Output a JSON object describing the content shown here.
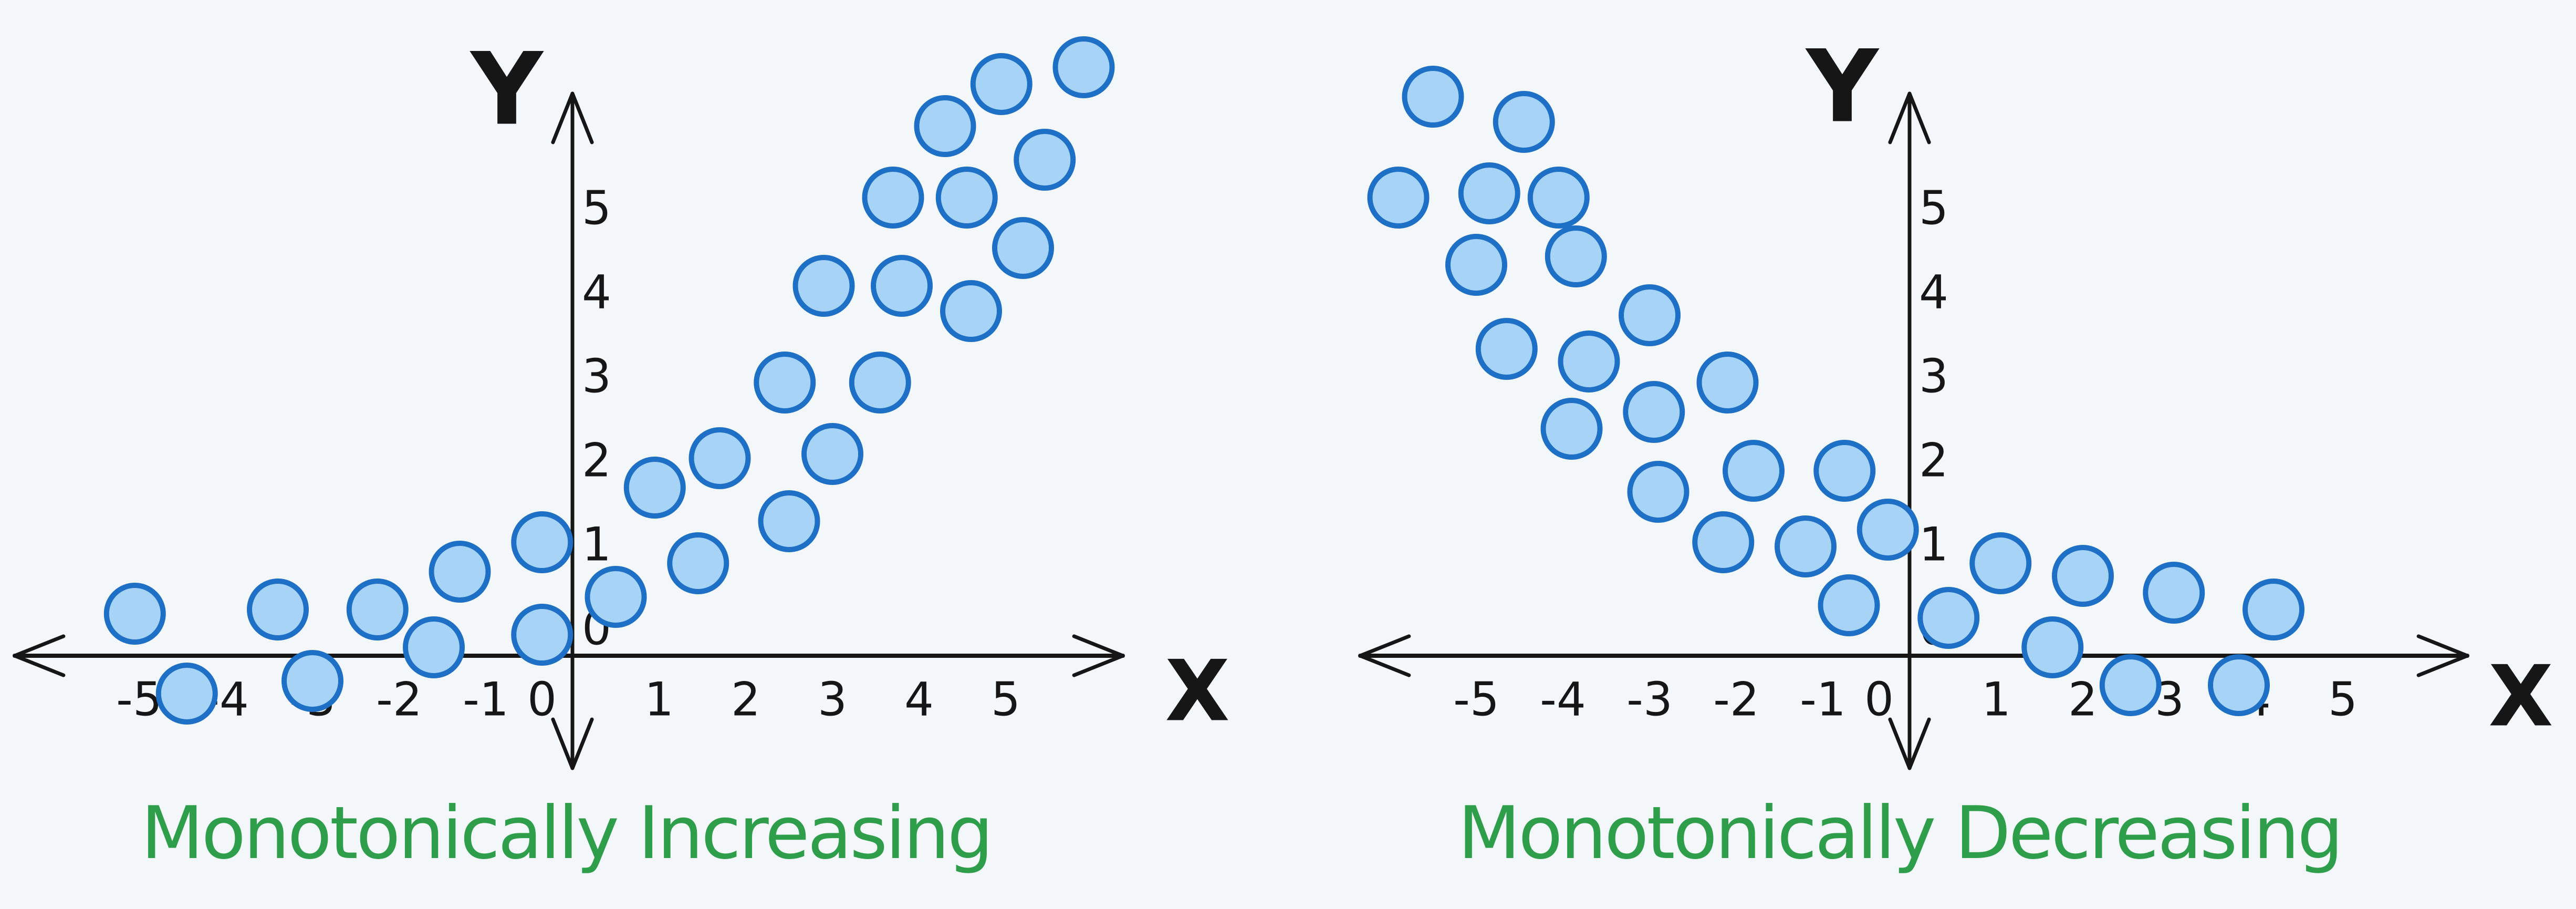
{
  "colors": {
    "background": "#f4f7f9",
    "axis": "#161616",
    "tick_label": "#161616",
    "caption_green": "#2e9e4b",
    "point_fill": "#a7d4f6",
    "point_stroke": "#1d70c5"
  },
  "chart_data": [
    {
      "type": "scatter",
      "title": "Monotonically Increasing",
      "xlabel": "X",
      "ylabel": "Y",
      "x_ticks": [
        -5,
        -4,
        -3,
        -2,
        -1,
        0,
        1,
        2,
        3,
        4,
        5
      ],
      "y_ticks": [
        0,
        1,
        2,
        3,
        4,
        5
      ],
      "xlim": [
        -6.5,
        6.4
      ],
      "ylim": [
        -1.4,
        7.2
      ],
      "grid": false,
      "legend": false,
      "points": [
        [
          -5.05,
          0.5
        ],
        [
          -4.45,
          -0.45
        ],
        [
          -3.4,
          0.55
        ],
        [
          -3.0,
          -0.3
        ],
        [
          -2.25,
          0.55
        ],
        [
          -1.6,
          0.1
        ],
        [
          -1.3,
          1.0
        ],
        [
          -0.35,
          1.35
        ],
        [
          -0.35,
          0.25
        ],
        [
          0.5,
          0.7
        ],
        [
          0.95,
          2.0
        ],
        [
          1.45,
          1.1
        ],
        [
          1.7,
          2.35
        ],
        [
          2.45,
          3.25
        ],
        [
          2.5,
          1.6
        ],
        [
          2.9,
          4.4
        ],
        [
          3.0,
          2.4
        ],
        [
          3.55,
          3.25
        ],
        [
          3.7,
          5.45
        ],
        [
          3.8,
          4.4
        ],
        [
          4.3,
          6.3
        ],
        [
          4.55,
          5.45
        ],
        [
          4.6,
          4.1
        ],
        [
          4.95,
          6.8
        ],
        [
          5.2,
          4.85
        ],
        [
          5.45,
          5.9
        ],
        [
          5.9,
          7.0
        ]
      ]
    },
    {
      "type": "scatter",
      "title": "Monotonically Decreasing",
      "xlabel": "X",
      "ylabel": "Y",
      "x_ticks": [
        -5,
        -4,
        -3,
        -2,
        -1,
        0,
        1,
        2,
        3,
        4,
        5
      ],
      "y_ticks": [
        0,
        1,
        2,
        3,
        4,
        5
      ],
      "xlim": [
        -6.4,
        6.5
      ],
      "ylim": [
        -1.4,
        7.0
      ],
      "grid": false,
      "legend": false,
      "points": [
        [
          -5.9,
          5.45
        ],
        [
          -5.5,
          6.65
        ],
        [
          -5.0,
          4.65
        ],
        [
          -4.85,
          5.5
        ],
        [
          -4.65,
          3.65
        ],
        [
          -4.45,
          6.35
        ],
        [
          -4.05,
          5.45
        ],
        [
          -3.85,
          4.75
        ],
        [
          -3.9,
          2.7
        ],
        [
          -3.7,
          3.5
        ],
        [
          -3.0,
          4.05
        ],
        [
          -2.95,
          2.9
        ],
        [
          -2.9,
          1.95
        ],
        [
          -2.15,
          1.35
        ],
        [
          -2.1,
          3.25
        ],
        [
          -1.8,
          2.2
        ],
        [
          -1.2,
          1.3
        ],
        [
          -0.75,
          2.2
        ],
        [
          -0.7,
          0.6
        ],
        [
          -0.25,
          1.5
        ],
        [
          0.45,
          0.45
        ],
        [
          1.05,
          1.1
        ],
        [
          1.65,
          0.1
        ],
        [
          2.0,
          0.95
        ],
        [
          2.55,
          -0.35
        ],
        [
          3.05,
          0.75
        ],
        [
          3.8,
          -0.35
        ],
        [
          4.2,
          0.55
        ]
      ]
    }
  ]
}
